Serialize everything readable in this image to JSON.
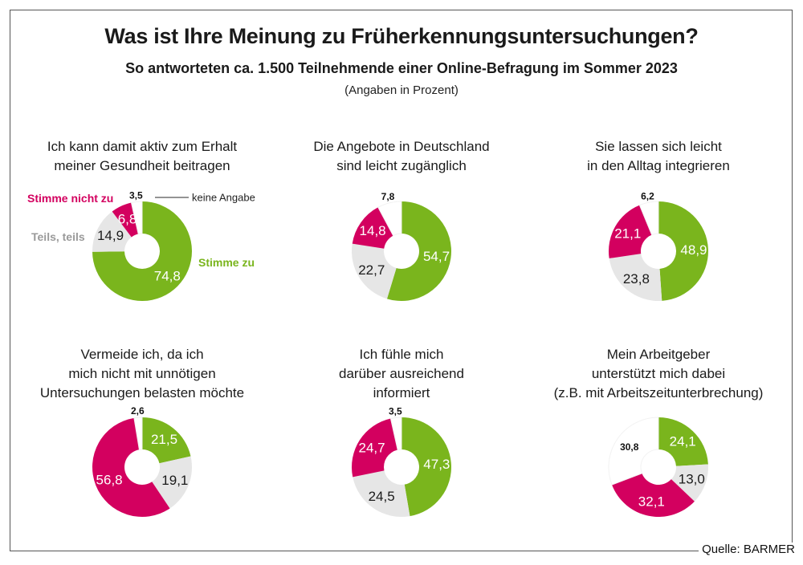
{
  "header": {
    "title": "Was ist Ihre Meinung zu Früherkennungsuntersuchungen?",
    "subtitle": "So antworteten ca. 1.500 Teilnehmende einer Online-Befragung im Sommer 2023",
    "note": "(Angaben in Prozent)"
  },
  "footer": {
    "source": "Quelle: BARMER"
  },
  "colors": {
    "stimme_zu": "#7ab51d",
    "teils_teils": "#e6e6e6",
    "stimme_nicht_zu": "#d3005f",
    "keine_angabe": "#ffffff"
  },
  "chart_data": {
    "type": "pie",
    "title": "Was ist Ihre Meinung zu Früherkennungsuntersuchungen?",
    "subtitle": "So antworteten ca. 1.500 Teilnehmende einer Online-Befragung im Sommer 2023",
    "unit": "(Angaben in Prozent)",
    "legend": [
      {
        "key": "stimme_zu",
        "label": "Stimme zu"
      },
      {
        "key": "teils_teils",
        "label": "Teils, teils"
      },
      {
        "key": "stimme_nicht_zu",
        "label": "Stimme nicht zu"
      },
      {
        "key": "keine_angabe",
        "label": "keine Angabe"
      }
    ],
    "charts": [
      {
        "title_lines": [
          "Ich kann damit aktiv zum Erhalt",
          "meiner Gesundheit beitragen"
        ],
        "values": {
          "stimme_zu": 74.8,
          "teils_teils": 14.9,
          "stimme_nicht_zu": 6.8,
          "keine_angabe": 3.5
        },
        "labels": {
          "stimme_zu": "74,8",
          "teils_teils": "14,9",
          "stimme_nicht_zu": "6,8",
          "keine_angabe": "3,5"
        }
      },
      {
        "title_lines": [
          "Die Angebote in Deutschland",
          "sind leicht zugänglich"
        ],
        "values": {
          "stimme_zu": 54.7,
          "teils_teils": 22.7,
          "stimme_nicht_zu": 14.8,
          "keine_angabe": 7.8
        },
        "labels": {
          "stimme_zu": "54,7",
          "teils_teils": "22,7",
          "stimme_nicht_zu": "14,8",
          "keine_angabe": "7,8"
        }
      },
      {
        "title_lines": [
          "Sie lassen sich leicht",
          "in den Alltag integrieren"
        ],
        "values": {
          "stimme_zu": 48.9,
          "teils_teils": 23.8,
          "stimme_nicht_zu": 21.1,
          "keine_angabe": 6.2
        },
        "labels": {
          "stimme_zu": "48,9",
          "teils_teils": "23,8",
          "stimme_nicht_zu": "21,1",
          "keine_angabe": "6,2"
        }
      },
      {
        "title_lines": [
          "Vermeide ich, da ich",
          "mich nicht mit unnötigen",
          "Untersuchungen belasten möchte"
        ],
        "values": {
          "stimme_zu": 21.5,
          "teils_teils": 19.1,
          "stimme_nicht_zu": 56.8,
          "keine_angabe": 2.6
        },
        "labels": {
          "stimme_zu": "21,5",
          "teils_teils": "19,1",
          "stimme_nicht_zu": "56,8",
          "keine_angabe": "2,6"
        }
      },
      {
        "title_lines": [
          "Ich fühle mich",
          "darüber ausreichend",
          "informiert"
        ],
        "values": {
          "stimme_zu": 47.3,
          "teils_teils": 24.5,
          "stimme_nicht_zu": 24.7,
          "keine_angabe": 3.5
        },
        "labels": {
          "stimme_zu": "47,3",
          "teils_teils": "24,5",
          "stimme_nicht_zu": "24,7",
          "keine_angabe": "3,5"
        }
      },
      {
        "title_lines": [
          "Mein Arbeitgeber",
          "unterstützt mich dabei",
          "(z.B. mit Arbeitszeitunterbrechung)"
        ],
        "values": {
          "stimme_zu": 24.1,
          "teils_teils": 13.0,
          "stimme_nicht_zu": 32.1,
          "keine_angabe": 30.8
        },
        "labels": {
          "stimme_zu": "24,1",
          "teils_teils": "13,0",
          "stimme_nicht_zu": "32,1",
          "keine_angabe": "30,8"
        }
      }
    ]
  }
}
